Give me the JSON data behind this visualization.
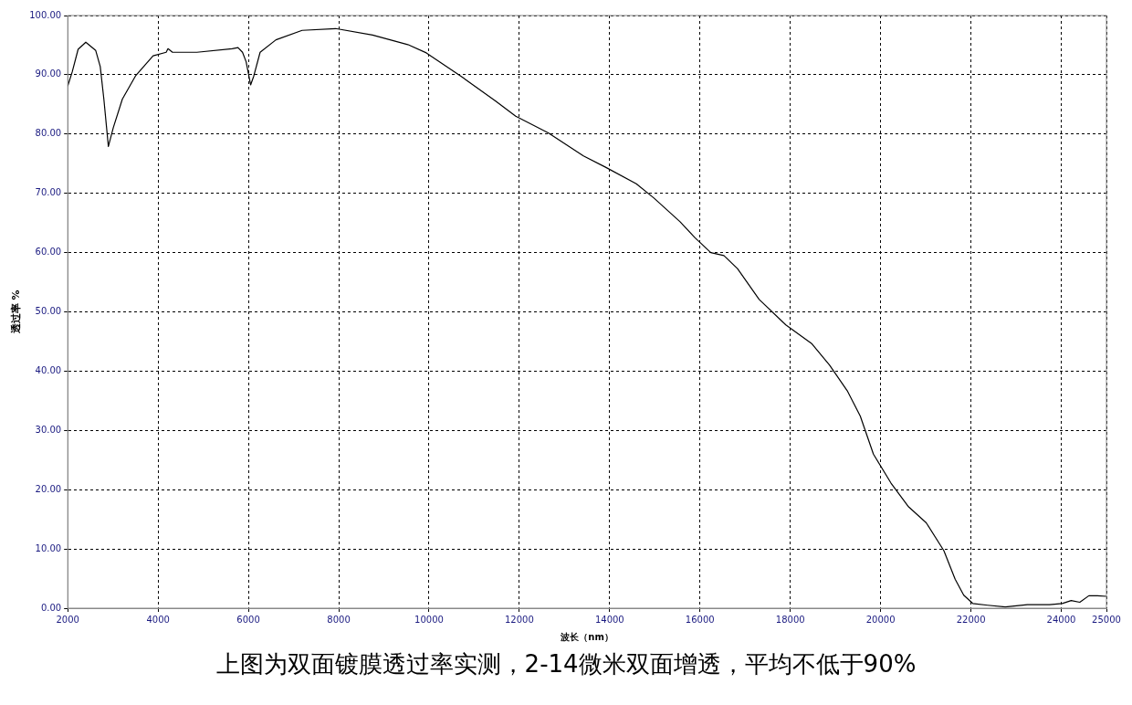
{
  "chart_data": {
    "type": "line",
    "xlabel": "波长（nm）",
    "ylabel": "透过率 %",
    "annotations": [
      "上图为双面镀膜透过率实测，2-14微米双面增透，平均不低于90%"
    ],
    "x": [
      2000,
      2100,
      2230,
      2400,
      2620,
      2720,
      2800,
      2900,
      3010,
      3210,
      3500,
      3890,
      4180,
      4220,
      4320,
      4860,
      5640,
      5770,
      5870,
      5950,
      6050,
      6120,
      6260,
      6610,
      7190,
      7930,
      8750,
      9530,
      9940,
      10700,
      11470,
      11920,
      12640,
      13420,
      13910,
      14590,
      14980,
      15560,
      15890,
      16240,
      16530,
      16830,
      17310,
      17900,
      18480,
      18870,
      19260,
      19550,
      19840,
      20230,
      20620,
      21010,
      21400,
      21650,
      21840,
      22040,
      22370,
      22760,
      23250,
      23740,
      24020,
      24220,
      24410,
      24610,
      24800,
      25000
    ],
    "series": [
      {
        "color": "#000000",
        "values": [
          88.1,
          90.5,
          94.3,
          95.5,
          94.1,
          91.4,
          85.9,
          77.9,
          81.1,
          85.9,
          89.8,
          93.2,
          93.8,
          94.4,
          93.8,
          93.8,
          94.4,
          94.6,
          93.8,
          92.2,
          88.3,
          89.8,
          93.8,
          95.9,
          97.5,
          97.8,
          96.7,
          95.1,
          93.7,
          89.8,
          85.6,
          83.0,
          80.2,
          76.3,
          74.4,
          71.6,
          69.2,
          65.2,
          62.5,
          60.0,
          59.5,
          57.3,
          52.1,
          47.8,
          44.6,
          41.0,
          36.7,
          32.4,
          26.0,
          21.1,
          17.1,
          14.4,
          9.7,
          4.9,
          2.2,
          0.8,
          0.5,
          0.2,
          0.6,
          0.6,
          0.8,
          1.3,
          1.0,
          2.1,
          2.1,
          2.0
        ]
      }
    ],
    "xlim": [
      2000,
      25000
    ],
    "xticks": [
      2000,
      4000,
      6000,
      8000,
      10000,
      12000,
      14000,
      16000,
      18000,
      20000,
      22000,
      24000,
      25000
    ],
    "ylim": [
      0,
      100
    ],
    "yticks": [
      {
        "value": 0,
        "label": "0.00"
      },
      {
        "value": 10,
        "label": "10.00"
      },
      {
        "value": 20,
        "label": "20.00"
      },
      {
        "value": 30,
        "label": "30.00"
      },
      {
        "value": 40,
        "label": "40.00"
      },
      {
        "value": 50,
        "label": "50.00"
      },
      {
        "value": 60,
        "label": "60.00"
      },
      {
        "value": 70,
        "label": "70.00"
      },
      {
        "value": 80,
        "label": "80.00"
      },
      {
        "value": 90,
        "label": "90.00"
      },
      {
        "value": 100,
        "label": "100.00"
      }
    ],
    "grid": true,
    "legend": false,
    "marker": "none",
    "line_style": "solid"
  }
}
